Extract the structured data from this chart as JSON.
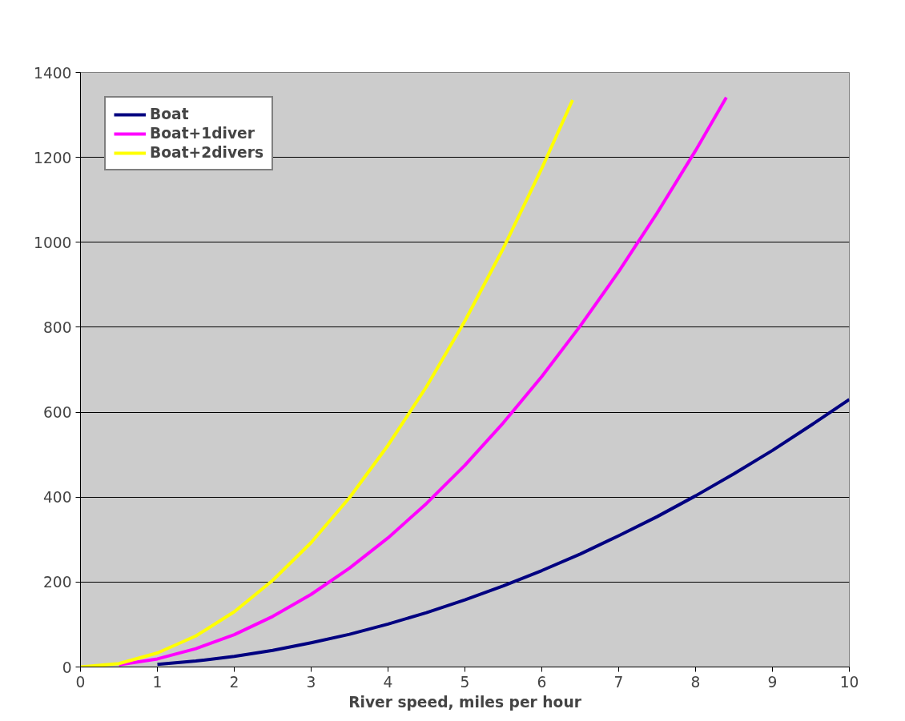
{
  "chart_data": {
    "type": "line",
    "xlabel": "River speed, miles per hour",
    "xlim": [
      0,
      10
    ],
    "xticks": [
      0,
      1,
      2,
      3,
      4,
      5,
      6,
      7,
      8,
      9,
      10
    ],
    "ylim": [
      0,
      1400
    ],
    "yticks": [
      0,
      200,
      400,
      600,
      800,
      1000,
      1200,
      1400
    ],
    "grid": "y",
    "legend": "top left",
    "line_style": "solid",
    "marker": "none",
    "series": [
      {
        "name": "Boat",
        "color": "#000080",
        "x": [
          1,
          1.5,
          2,
          2.5,
          3,
          3.5,
          4,
          4.5,
          5,
          5.5,
          6,
          6.5,
          7,
          7.5,
          8,
          8.5,
          9,
          9.5,
          10
        ],
        "values": [
          6,
          14,
          25,
          39,
          57,
          77,
          101,
          128,
          158,
          191,
          227,
          266,
          309,
          354,
          403,
          455,
          510,
          569,
          630
        ]
      },
      {
        "name": "Boat+1diver",
        "color": "#ff00ff",
        "x": [
          0.5,
          1,
          1.5,
          2,
          2.5,
          3,
          3.5,
          4,
          4.5,
          5,
          5.5,
          6,
          6.5,
          7,
          7.5,
          8,
          8.4
        ],
        "values": [
          5,
          19,
          43,
          76,
          119,
          171,
          233,
          304,
          385,
          475,
          575,
          684,
          803,
          931,
          1069,
          1216,
          1341
        ]
      },
      {
        "name": "Boat+2divers",
        "color": "#ffff00",
        "x": [
          0,
          0.5,
          1,
          1.5,
          2,
          2.5,
          3,
          3.5,
          4,
          4.5,
          5,
          5.5,
          6,
          6.4
        ],
        "values": [
          0,
          8,
          33,
          73,
          130,
          204,
          293,
          399,
          522,
          660,
          815,
          986,
          1174,
          1335
        ]
      }
    ]
  }
}
